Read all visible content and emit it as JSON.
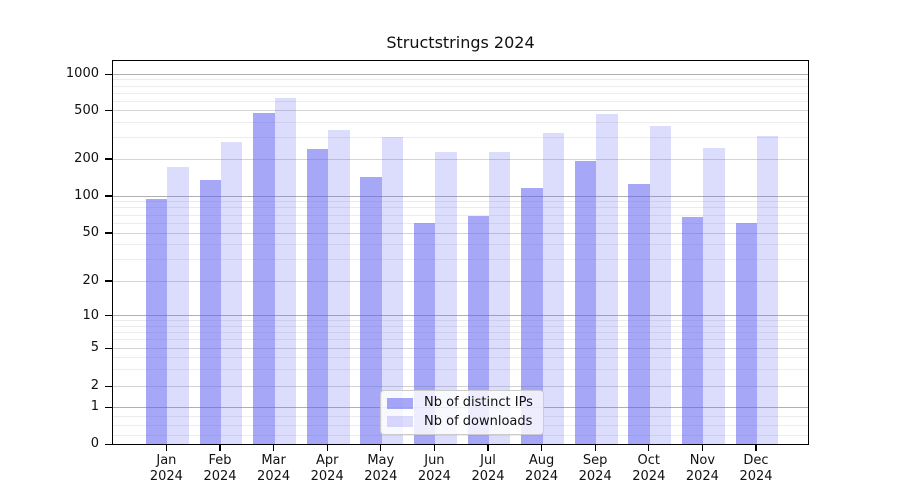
{
  "title": "Structstrings 2024",
  "chart_data": {
    "type": "bar",
    "title": "Structstrings 2024",
    "categories": [
      "Jan 2024",
      "Feb 2024",
      "Mar 2024",
      "Apr 2024",
      "May 2024",
      "Jun 2024",
      "Jul 2024",
      "Aug 2024",
      "Sep 2024",
      "Oct 2024",
      "Nov 2024",
      "Dec 2024"
    ],
    "series": [
      {
        "name": "Nb of distinct IPs",
        "color": "rgba(95,95,240,0.55)",
        "values": [
          94,
          135,
          478,
          240,
          144,
          60,
          69,
          117,
          193,
          125,
          67,
          60
        ]
      },
      {
        "name": "Nb of downloads",
        "color": "rgba(95,95,240,0.22)",
        "values": [
          172,
          275,
          640,
          345,
          305,
          230,
          230,
          325,
          470,
          375,
          248,
          308
        ]
      }
    ],
    "xlabel": "",
    "ylabel": "",
    "yscale": "asinh",
    "ylim": [
      0,
      1300
    ],
    "y_ticks": [
      0,
      1,
      2,
      5,
      10,
      20,
      50,
      100,
      200,
      500,
      1000
    ],
    "y_secondary_ticks": [
      2,
      5,
      20,
      50,
      200,
      500
    ],
    "y_minor_gridlines": [
      0.25,
      0.5,
      0.75,
      3,
      4,
      6,
      7,
      8,
      9,
      30,
      40,
      60,
      70,
      80,
      90,
      300,
      400,
      600,
      700,
      800,
      900
    ],
    "grid": true,
    "legend_position": "lower center"
  },
  "legend": {
    "items": [
      "Nb of distinct IPs",
      "Nb of downloads"
    ]
  },
  "style": {
    "bar_color_ips": "rgba(95,95,240,0.55)",
    "bar_color_downloads": "rgba(95,95,240,0.22)",
    "grid_major_color": "#b0b0b0",
    "grid_secondary_color": "#d4d4d4",
    "grid_minor_color": "#ececec",
    "axis_color": "#000000",
    "text_color": "#111111",
    "legend_border_color": "#cccccc"
  }
}
